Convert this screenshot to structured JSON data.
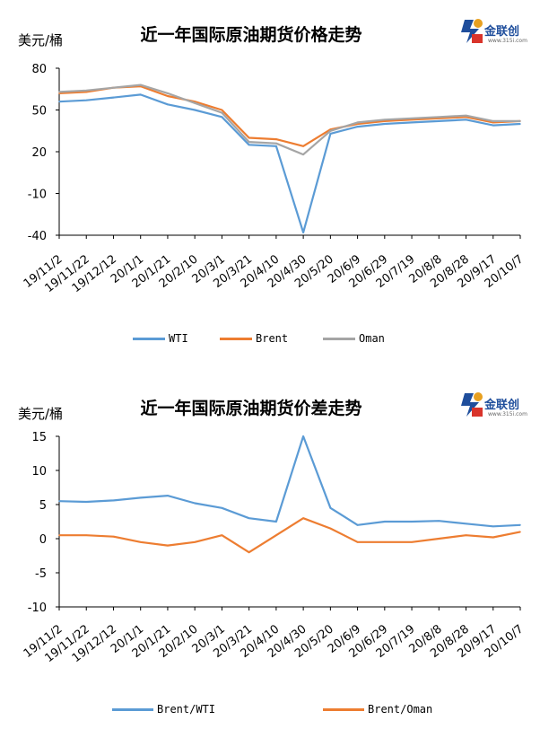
{
  "colors": {
    "wti": "#5b9bd5",
    "brent": "#ed7d31",
    "oman": "#a5a5a5",
    "axis": "#000000"
  },
  "logo": {
    "name": "金联创",
    "sub": "www.315i.com"
  },
  "chart1": {
    "title": "近一年国际原油期货价格走势",
    "unit": "美元/桶",
    "legend": [
      "WTI",
      "Brent",
      "Oman"
    ]
  },
  "chart2": {
    "title": "近一年国际原油期货价差走势",
    "unit": "美元/桶",
    "legend": [
      "Brent/WTI",
      "Brent/Oman"
    ]
  },
  "chart_data": [
    {
      "type": "line",
      "title": "近一年国际原油期货价格走势",
      "ylabel": "美元/桶",
      "ylim": [
        -40,
        80
      ],
      "yticks": [
        -40,
        -10,
        20,
        50,
        80
      ],
      "categories": [
        "19/11/2",
        "19/11/22",
        "19/12/12",
        "20/1/1",
        "20/1/21",
        "20/2/10",
        "20/3/1",
        "20/3/21",
        "20/4/10",
        "20/4/30",
        "20/5/20",
        "20/6/9",
        "20/6/29",
        "20/7/19",
        "20/8/8",
        "20/8/28",
        "20/9/17",
        "20/10/7"
      ],
      "series": [
        {
          "name": "WTI",
          "values": [
            56,
            57,
            59,
            61,
            54,
            50,
            45,
            25,
            24,
            -38,
            33,
            38,
            40,
            41,
            42,
            43,
            39,
            40
          ]
        },
        {
          "name": "Brent",
          "values": [
            62,
            63,
            66,
            67,
            60,
            56,
            50,
            30,
            29,
            24,
            36,
            40,
            42,
            43,
            44,
            45,
            41,
            42
          ]
        },
        {
          "name": "Oman",
          "values": [
            63,
            64,
            66,
            68,
            62,
            55,
            48,
            27,
            26,
            18,
            35,
            41,
            43,
            44,
            45,
            46,
            42,
            42
          ]
        }
      ]
    },
    {
      "type": "line",
      "title": "近一年国际原油期货价差走势",
      "ylabel": "美元/桶",
      "ylim": [
        -10,
        15
      ],
      "yticks": [
        -10,
        -5,
        0,
        5,
        10,
        15
      ],
      "categories": [
        "19/11/2",
        "19/11/22",
        "19/12/12",
        "20/1/1",
        "20/1/21",
        "20/2/10",
        "20/3/1",
        "20/3/21",
        "20/4/10",
        "20/4/30",
        "20/5/20",
        "20/6/9",
        "20/6/29",
        "20/7/19",
        "20/8/8",
        "20/8/28",
        "20/9/17",
        "20/10/7"
      ],
      "series": [
        {
          "name": "Brent/WTI",
          "values": [
            5.5,
            5.4,
            5.6,
            6.0,
            6.3,
            5.2,
            4.5,
            3.0,
            2.5,
            15,
            4.5,
            2.0,
            2.5,
            2.5,
            2.6,
            2.2,
            1.8,
            2.0
          ]
        },
        {
          "name": "Brent/Oman",
          "values": [
            0.5,
            0.5,
            0.3,
            -0.5,
            -1.0,
            -0.5,
            0.5,
            -2.0,
            0.5,
            3.0,
            1.5,
            -0.5,
            -0.5,
            -0.5,
            0.0,
            0.5,
            0.2,
            1.0
          ]
        }
      ]
    }
  ]
}
